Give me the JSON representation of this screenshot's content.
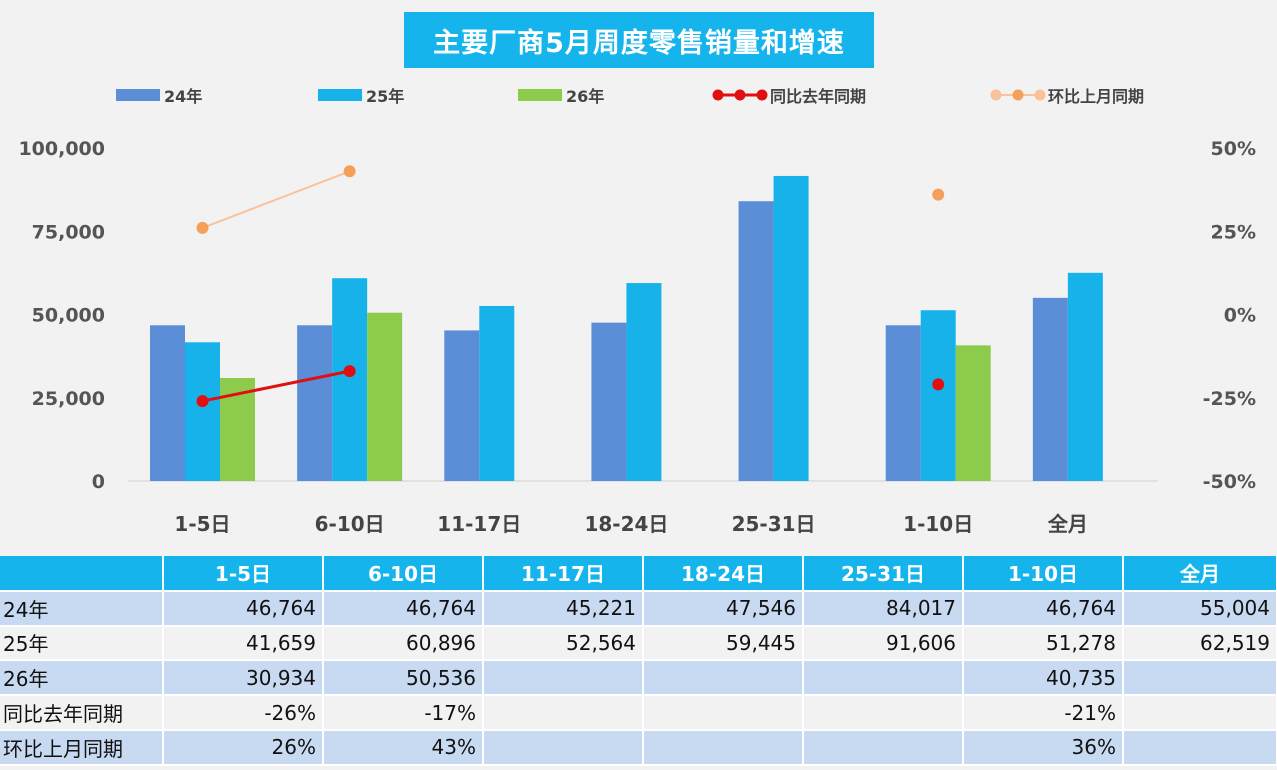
{
  "title": "主要厂商5月周度零售销量和增速",
  "legend": [
    {
      "label": "24年",
      "kind": "bar",
      "color": "#5b8ed6"
    },
    {
      "label": "25年",
      "kind": "bar",
      "color": "#18b2ea"
    },
    {
      "label": "26年",
      "kind": "bar",
      "color": "#8ccb4c"
    },
    {
      "label": "同比去年同期",
      "kind": "line",
      "color": "#e01010"
    },
    {
      "label": "环比上月同期",
      "kind": "line",
      "color": "#f4a05a"
    }
  ],
  "colors": {
    "s24": "#5b8ed6",
    "s25": "#18b2ea",
    "s26": "#8ccb4c",
    "yoy": "#e01010",
    "mom": "#f4a05a",
    "mom_line": "#f9c29a",
    "header": "#15b4ec"
  },
  "chart_data": {
    "type": "bar",
    "title": "主要厂商5月周度零售销量和增速",
    "categories": [
      "1-5日",
      "6-10日",
      "11-17日",
      "18-24日",
      "25-31日",
      "1-10日",
      "全月"
    ],
    "series": [
      {
        "name": "24年",
        "values": [
          46764,
          46764,
          45221,
          47546,
          84017,
          46764,
          55004
        ]
      },
      {
        "name": "25年",
        "values": [
          41659,
          60896,
          52564,
          59445,
          91606,
          51278,
          62519
        ]
      },
      {
        "name": "26年",
        "values": [
          30934,
          50536,
          null,
          null,
          null,
          40735,
          null
        ]
      }
    ],
    "line_series": [
      {
        "name": "同比去年同期",
        "axis": "right",
        "values": [
          -0.26,
          -0.17,
          null,
          null,
          null,
          -0.21,
          null
        ]
      },
      {
        "name": "环比上月同期",
        "axis": "right",
        "values": [
          0.26,
          0.43,
          null,
          null,
          null,
          0.36,
          null
        ]
      }
    ],
    "ylim": [
      0,
      100000
    ],
    "yticks": [
      "0",
      "25,000",
      "50,000",
      "75,000",
      "100,000"
    ],
    "y2lim": [
      -0.5,
      0.5
    ],
    "y2ticks": [
      "-50%",
      "-25%",
      "0%",
      "25%",
      "50%"
    ],
    "legend_position": "top"
  },
  "table": {
    "headers": [
      "",
      "1-5日",
      "6-10日",
      "11-17日",
      "18-24日",
      "25-31日",
      "1-10日",
      "全月"
    ],
    "rows": [
      {
        "label": "24年",
        "cells": [
          "46,764",
          "46,764",
          "45,221",
          "47,546",
          "84,017",
          "46,764",
          "55,004"
        ]
      },
      {
        "label": "25年",
        "cells": [
          "41,659",
          "60,896",
          "52,564",
          "59,445",
          "91,606",
          "51,278",
          "62,519"
        ]
      },
      {
        "label": "26年",
        "cells": [
          "30,934",
          "50,536",
          "",
          "",
          "",
          "40,735",
          ""
        ]
      },
      {
        "label": "同比去年同期",
        "cells": [
          "-26%",
          "-17%",
          "",
          "",
          "",
          "-21%",
          ""
        ]
      },
      {
        "label": "环比上月同期",
        "cells": [
          "26%",
          "43%",
          "",
          "",
          "",
          "36%",
          ""
        ]
      }
    ]
  }
}
